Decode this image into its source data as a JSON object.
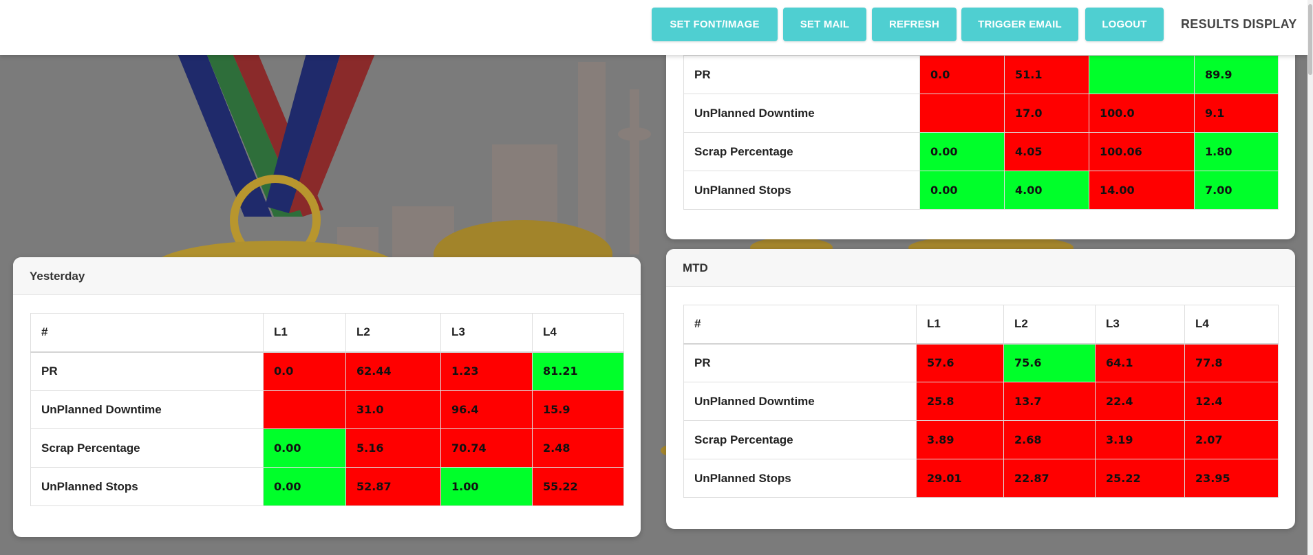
{
  "nav": {
    "buttons": [
      {
        "label": "SET FONT/IMAGE"
      },
      {
        "label": "SET MAIL"
      },
      {
        "label": "REFRESH"
      },
      {
        "label": "TRIGGER EMAIL"
      },
      {
        "label": "LOGOUT"
      }
    ],
    "brand": "RESULTS DISPLAY"
  },
  "colors": {
    "accent": "#4fcfd1",
    "fail": "#ff0000",
    "pass": "#00ff2a"
  },
  "today_table": {
    "rows": [
      {
        "label": "PR",
        "cells": [
          {
            "value": "0.0",
            "status": "red"
          },
          {
            "value": "51.1",
            "status": "red"
          },
          {
            "value": "",
            "status": "green"
          },
          {
            "value": "89.9",
            "status": "green"
          }
        ]
      },
      {
        "label": "UnPlanned Downtime",
        "cells": [
          {
            "value": "",
            "status": "red"
          },
          {
            "value": "17.0",
            "status": "red"
          },
          {
            "value": "100.0",
            "status": "red"
          },
          {
            "value": "9.1",
            "status": "red"
          }
        ]
      },
      {
        "label": "Scrap Percentage",
        "cells": [
          {
            "value": "0.00",
            "status": "green"
          },
          {
            "value": "4.05",
            "status": "red"
          },
          {
            "value": "100.06",
            "status": "red"
          },
          {
            "value": "1.80",
            "status": "green"
          }
        ]
      },
      {
        "label": "UnPlanned Stops",
        "cells": [
          {
            "value": "0.00",
            "status": "green"
          },
          {
            "value": "4.00",
            "status": "green"
          },
          {
            "value": "14.00",
            "status": "red"
          },
          {
            "value": "7.00",
            "status": "green"
          }
        ]
      }
    ]
  },
  "yesterday": {
    "title": "Yesterday",
    "headers": [
      "#",
      "L1",
      "L2",
      "L3",
      "L4"
    ],
    "rows": [
      {
        "label": "PR",
        "cells": [
          {
            "value": "0.0",
            "status": "red"
          },
          {
            "value": "62.44",
            "status": "red"
          },
          {
            "value": "1.23",
            "status": "red"
          },
          {
            "value": "81.21",
            "status": "green"
          }
        ]
      },
      {
        "label": "UnPlanned Downtime",
        "cells": [
          {
            "value": "",
            "status": "red"
          },
          {
            "value": "31.0",
            "status": "red"
          },
          {
            "value": "96.4",
            "status": "red"
          },
          {
            "value": "15.9",
            "status": "red"
          }
        ]
      },
      {
        "label": "Scrap Percentage",
        "cells": [
          {
            "value": "0.00",
            "status": "green"
          },
          {
            "value": "5.16",
            "status": "red"
          },
          {
            "value": "70.74",
            "status": "red"
          },
          {
            "value": "2.48",
            "status": "red"
          }
        ]
      },
      {
        "label": "UnPlanned Stops",
        "cells": [
          {
            "value": "0.00",
            "status": "green"
          },
          {
            "value": "52.87",
            "status": "red"
          },
          {
            "value": "1.00",
            "status": "green"
          },
          {
            "value": "55.22",
            "status": "red"
          }
        ]
      }
    ]
  },
  "mtd": {
    "title": "MTD",
    "headers": [
      "#",
      "L1",
      "L2",
      "L3",
      "L4"
    ],
    "rows": [
      {
        "label": "PR",
        "cells": [
          {
            "value": "57.6",
            "status": "red"
          },
          {
            "value": "75.6",
            "status": "green"
          },
          {
            "value": "64.1",
            "status": "red"
          },
          {
            "value": "77.8",
            "status": "red"
          }
        ]
      },
      {
        "label": "UnPlanned Downtime",
        "cells": [
          {
            "value": "25.8",
            "status": "red"
          },
          {
            "value": "13.7",
            "status": "red"
          },
          {
            "value": "22.4",
            "status": "red"
          },
          {
            "value": "12.4",
            "status": "red"
          }
        ]
      },
      {
        "label": "Scrap Percentage",
        "cells": [
          {
            "value": "3.89",
            "status": "red"
          },
          {
            "value": "2.68",
            "status": "red"
          },
          {
            "value": "3.19",
            "status": "red"
          },
          {
            "value": "2.07",
            "status": "red"
          }
        ]
      },
      {
        "label": "UnPlanned Stops",
        "cells": [
          {
            "value": "29.01",
            "status": "red"
          },
          {
            "value": "22.87",
            "status": "red"
          },
          {
            "value": "25.22",
            "status": "red"
          },
          {
            "value": "23.95",
            "status": "red"
          }
        ]
      }
    ]
  }
}
